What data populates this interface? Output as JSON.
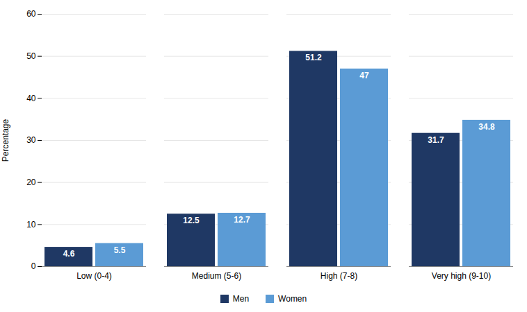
{
  "chart_data": {
    "type": "bar",
    "categories": [
      "Low (0-4)",
      "Medium (5-6)",
      "High (7-8)",
      "Very high (9-10)"
    ],
    "series": [
      {
        "name": "Men",
        "color": "#1F3864",
        "values": [
          4.6,
          12.5,
          51.2,
          31.7
        ]
      },
      {
        "name": "Women",
        "color": "#5B9BD5",
        "values": [
          5.5,
          12.7,
          47.0,
          34.8
        ]
      }
    ],
    "ylabel": "Percentage",
    "ylim": [
      0,
      60
    ],
    "yticks": [
      0,
      10,
      20,
      30,
      40,
      50,
      60
    ],
    "grid": true,
    "data_labels": true,
    "legend": "bottom"
  }
}
